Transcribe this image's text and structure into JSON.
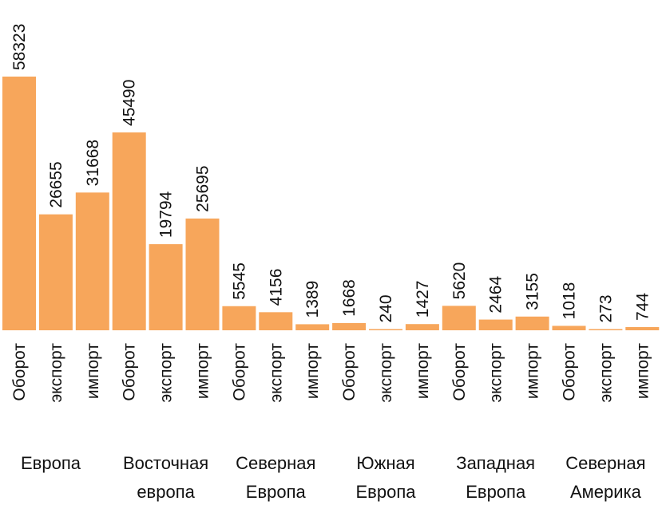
{
  "chart_data": {
    "type": "bar",
    "title": "",
    "xlabel": "",
    "ylabel": "",
    "ylim": [
      0,
      58323
    ],
    "bar_color": "#F7A65B",
    "groups": [
      {
        "name_lines": [
          "Европа"
        ],
        "categories": [
          "Оборот",
          "экспорт",
          "импорт"
        ],
        "values": [
          58323,
          26655,
          31668
        ]
      },
      {
        "name_lines": [
          "Восточная",
          "европа"
        ],
        "categories": [
          "Оборот",
          "экспорт",
          "импорт"
        ],
        "values": [
          45490,
          19794,
          25695
        ]
      },
      {
        "name_lines": [
          "Северная",
          "Европа"
        ],
        "categories": [
          "Оборот",
          "экспорт",
          "импорт"
        ],
        "values": [
          5545,
          4156,
          1389
        ]
      },
      {
        "name_lines": [
          "Южная",
          "Европа"
        ],
        "categories": [
          "Оборот",
          "экспорт",
          "импорт"
        ],
        "values": [
          1668,
          240,
          1427
        ]
      },
      {
        "name_lines": [
          "Западная",
          "Европа"
        ],
        "categories": [
          "Оборот",
          "экспорт",
          "импорт"
        ],
        "values": [
          5620,
          2464,
          3155
        ]
      },
      {
        "name_lines": [
          "Северная",
          "Америка"
        ],
        "categories": [
          "Оборот",
          "экспорт",
          "импорт"
        ],
        "values": [
          1018,
          273,
          744
        ]
      }
    ]
  }
}
